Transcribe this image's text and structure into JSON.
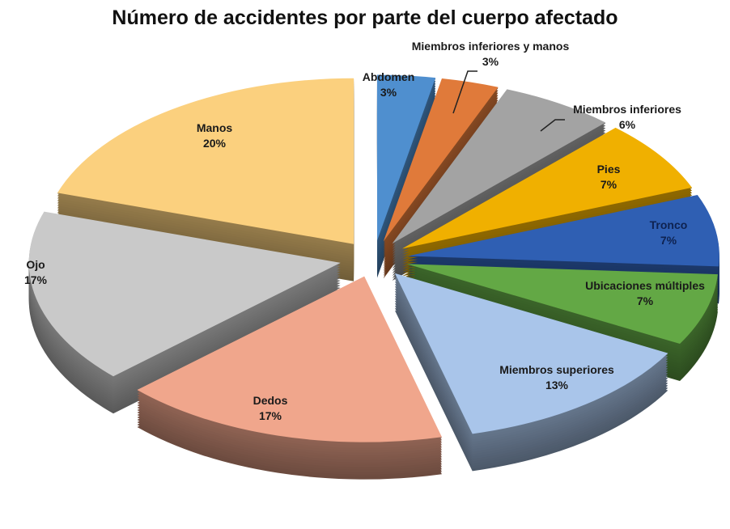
{
  "chart_data": {
    "type": "pie",
    "style": "3d-exploded",
    "title": "Número de accidentes por parte del cuerpo afectado",
    "unit": "%",
    "start": "top, clockwise",
    "slices": [
      {
        "label": "Abdomen",
        "value": 3,
        "display": "3%",
        "color": "#4f8fcf",
        "label_position": "outside"
      },
      {
        "label": "Miembros inferiores y manos",
        "value": 3,
        "display": "3%",
        "color": "#e07a3a",
        "label_position": "outside-leader"
      },
      {
        "label": "Miembros inferiores",
        "value": 6,
        "display": "6%",
        "color": "#a3a3a3",
        "label_position": "outside-leader"
      },
      {
        "label": "Pies",
        "value": 7,
        "display": "7%",
        "color": "#f0b000",
        "label_position": "inside"
      },
      {
        "label": "Tronco",
        "value": 7,
        "display": "7%",
        "color": "#2f5fb3",
        "label_position": "inside"
      },
      {
        "label": "Ubicaciones múltiples",
        "value": 7,
        "display": "7%",
        "color": "#63a845",
        "label_position": "inside"
      },
      {
        "label": "Miembros superiores",
        "value": 13,
        "display": "13%",
        "color": "#a9c5ea",
        "label_position": "inside"
      },
      {
        "label": "Dedos",
        "value": 17,
        "display": "17%",
        "color": "#f0a68c",
        "label_position": "inside"
      },
      {
        "label": "Ojo",
        "value": 17,
        "display": "17%",
        "color": "#c9c9c9",
        "label_position": "inside"
      },
      {
        "label": "Manos",
        "value": 20,
        "display": "20%",
        "color": "#fbd07e",
        "label_position": "inside"
      }
    ]
  }
}
